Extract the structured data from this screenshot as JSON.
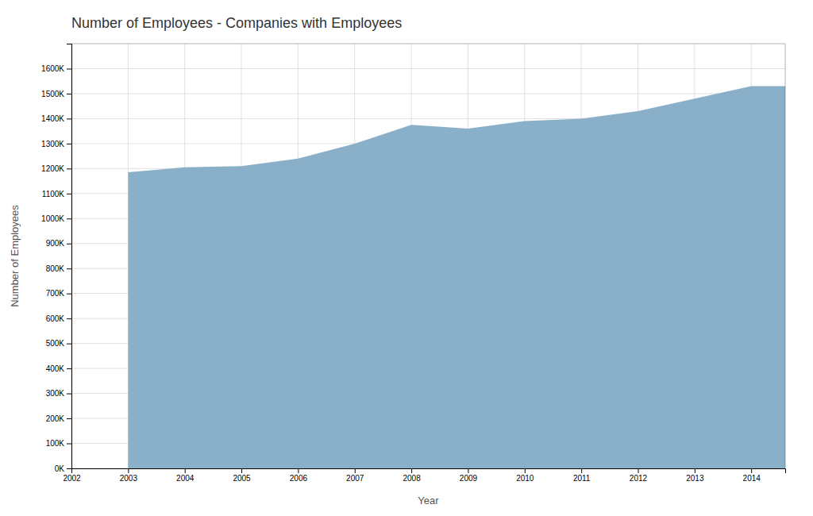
{
  "chart_data": {
    "type": "area",
    "title": "Number of Employees - Companies with Employees",
    "xlabel": "Year",
    "ylabel": "Number of Employees",
    "x": [
      2003,
      2004,
      2005,
      2006,
      2007,
      2008,
      2009,
      2010,
      2011,
      2012,
      2013,
      2014,
      2014.6
    ],
    "values": [
      1185000,
      1205000,
      1210000,
      1240000,
      1300000,
      1375000,
      1360000,
      1390000,
      1400000,
      1430000,
      1480000,
      1530000,
      1530000
    ],
    "color": "#8aafc8",
    "xlim": [
      2002,
      2014.6
    ],
    "ylim": [
      0,
      1700000
    ],
    "xticks": [
      2002,
      2003,
      2004,
      2005,
      2006,
      2007,
      2008,
      2009,
      2010,
      2011,
      2012,
      2013,
      2014
    ],
    "yticks": [
      {
        "value": 0,
        "label": "0K"
      },
      {
        "value": 100000,
        "label": "100K"
      },
      {
        "value": 200000,
        "label": "200K"
      },
      {
        "value": 300000,
        "label": "300K"
      },
      {
        "value": 400000,
        "label": "400K"
      },
      {
        "value": 500000,
        "label": "500K"
      },
      {
        "value": 600000,
        "label": "600K"
      },
      {
        "value": 700000,
        "label": "700K"
      },
      {
        "value": 800000,
        "label": "800K"
      },
      {
        "value": 900000,
        "label": "900K"
      },
      {
        "value": 1000000,
        "label": "1000K"
      },
      {
        "value": 1100000,
        "label": "1100K"
      },
      {
        "value": 1200000,
        "label": "1200K"
      },
      {
        "value": 1300000,
        "label": "1300K"
      },
      {
        "value": 1400000,
        "label": "1400K"
      },
      {
        "value": 1500000,
        "label": "1500K"
      },
      {
        "value": 1600000,
        "label": "1600K"
      }
    ],
    "grid": true
  }
}
